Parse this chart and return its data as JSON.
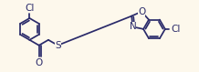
{
  "bg_color": "#fdf8ec",
  "bond_color": "#2a2a6a",
  "lw": 1.25,
  "fs": 7.5,
  "fig_w": 2.18,
  "fig_h": 0.79,
  "dpi": 100,
  "xlim": [
    -0.05,
    2.23
  ],
  "ylim": [
    -0.02,
    0.81
  ]
}
